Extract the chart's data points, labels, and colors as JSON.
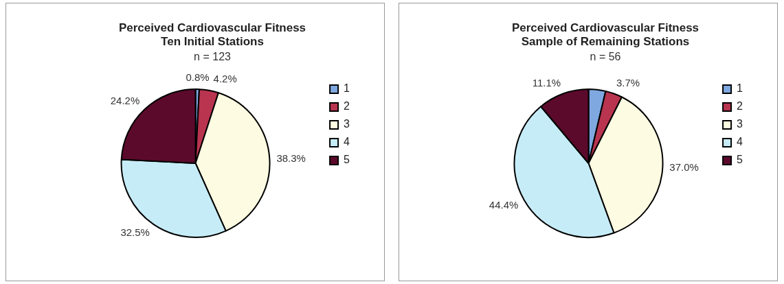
{
  "chart_data": [
    {
      "type": "pie",
      "title": "Perceived Cardiovascular Fitness\nTen Initial Stations",
      "subtitle": "n = 123",
      "categories": [
        "1",
        "2",
        "3",
        "4",
        "5"
      ],
      "values": [
        0.8,
        4.2,
        38.3,
        32.5,
        24.2
      ],
      "colors": [
        "#7fa8e0",
        "#b8344f",
        "#fdfbe2",
        "#c6ecf7",
        "#5c0a2c"
      ],
      "value_labels": [
        "0.8%",
        "4.2%",
        "38.3%",
        "32.5%",
        "24.2%"
      ],
      "legend": "right"
    },
    {
      "type": "pie",
      "title": "Perceived Cardiovascular Fitness\nSample of Remaining Stations",
      "subtitle": "n = 56",
      "categories": [
        "1",
        "2",
        "3",
        "4",
        "5"
      ],
      "values": [
        3.7,
        3.7,
        37.0,
        44.4,
        11.1
      ],
      "colors": [
        "#7fa8e0",
        "#b8344f",
        "#fdfbe2",
        "#c6ecf7",
        "#5c0a2c"
      ],
      "value_labels": [
        null,
        "3.7%",
        "37.0%",
        "44.4%",
        "11.1%"
      ],
      "legend": "right"
    }
  ]
}
